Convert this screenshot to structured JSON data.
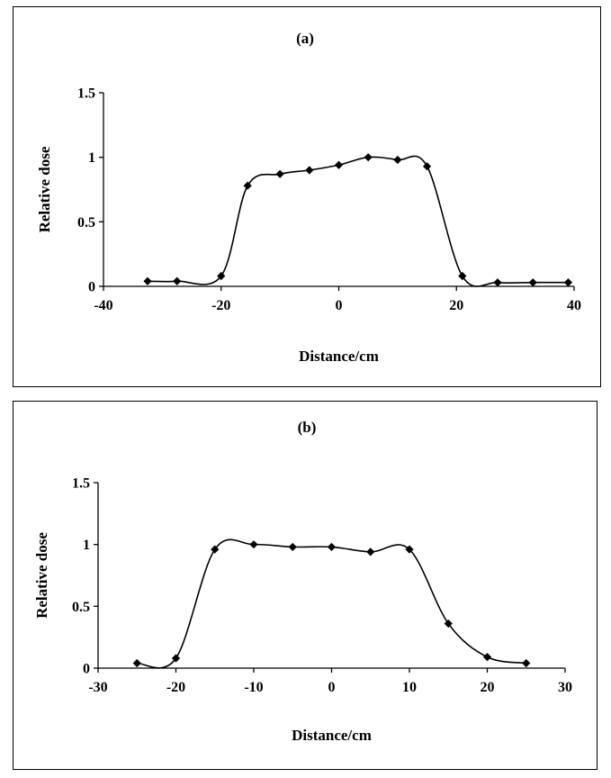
{
  "chart_data": [
    {
      "type": "line",
      "title": "(a)",
      "xlabel": "Distance/cm",
      "ylabel": "Relative dose",
      "xlim": [
        -40,
        40
      ],
      "ylim": [
        0,
        1.5
      ],
      "xticks": [
        "-40",
        "-20",
        "0",
        "20",
        "40"
      ],
      "yticks": [
        "0",
        "0.5",
        "1",
        "1.5"
      ],
      "grid": false,
      "legend": "none",
      "marker": "diamond",
      "color": "#000000",
      "series": [
        {
          "x": [
            -32.5,
            -27.5,
            -20,
            -15.5,
            -10,
            -5,
            0,
            5,
            10,
            15,
            21,
            27,
            33,
            39
          ],
          "y": [
            0.04,
            0.04,
            0.08,
            0.78,
            0.87,
            0.9,
            0.94,
            1.0,
            0.98,
            0.93,
            0.08,
            0.03,
            0.03,
            0.03
          ]
        }
      ]
    },
    {
      "type": "line",
      "title": "(b)",
      "xlabel": "Distance/cm",
      "ylabel": "Relative dose",
      "xlim": [
        -30,
        30
      ],
      "ylim": [
        0,
        1.5
      ],
      "xticks": [
        "-30",
        "-20",
        "-10",
        "0",
        "10",
        "20",
        "30"
      ],
      "yticks": [
        "0",
        "0.5",
        "1",
        "1.5"
      ],
      "grid": false,
      "legend": "none",
      "marker": "diamond",
      "color": "#000000",
      "series": [
        {
          "x": [
            -25,
            -20,
            -15,
            -10,
            -5,
            0,
            5,
            10,
            15,
            20,
            25
          ],
          "y": [
            0.04,
            0.08,
            0.96,
            1.0,
            0.98,
            0.98,
            0.94,
            0.96,
            0.36,
            0.09,
            0.04
          ]
        }
      ]
    }
  ]
}
